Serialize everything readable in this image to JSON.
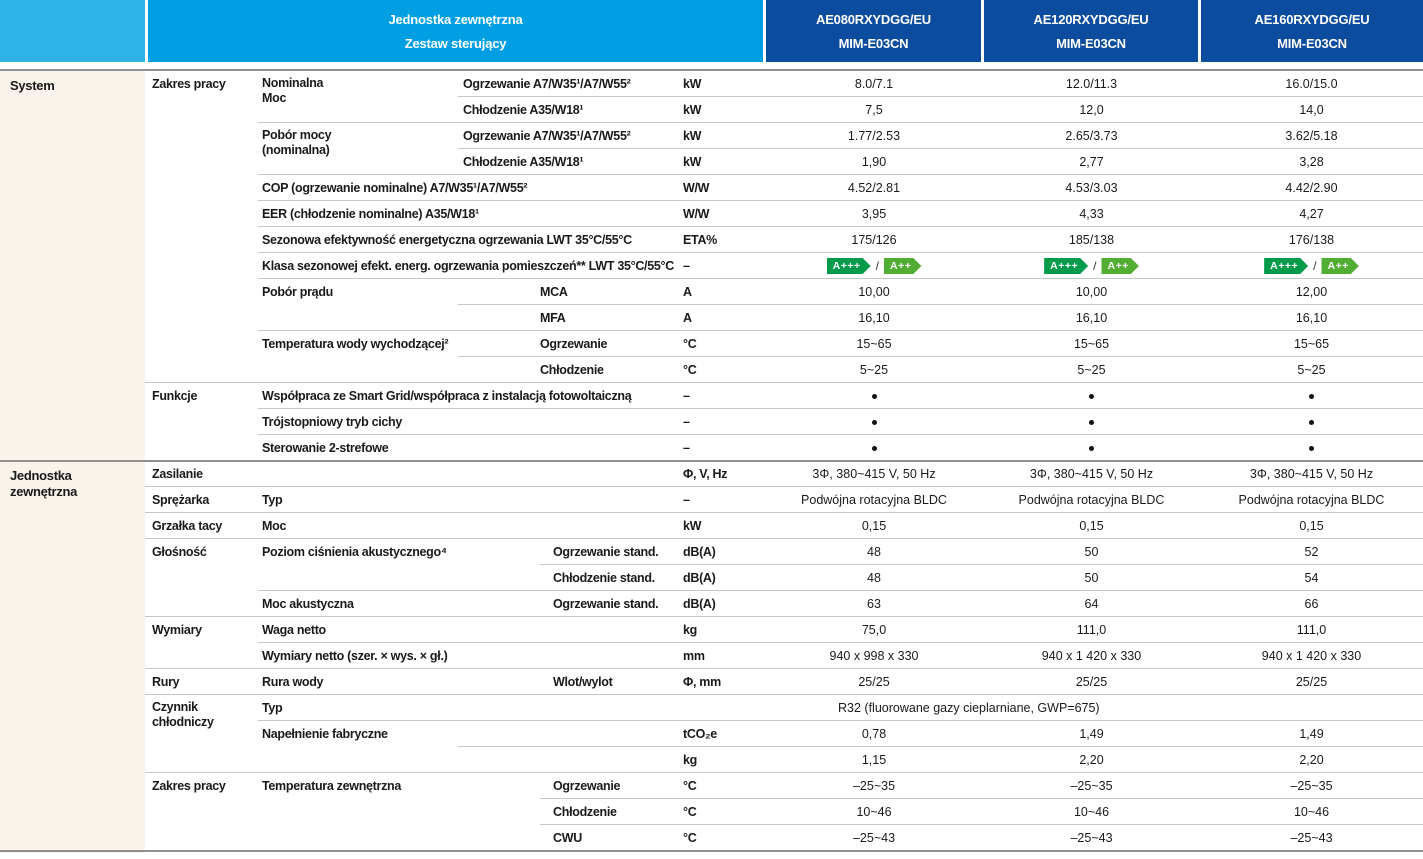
{
  "colors": {
    "cyan": "#009fe3",
    "cyan_light": "#2eb3e6",
    "navy": "#0c4c9e",
    "cream": "#f9f3ec",
    "border_light": "#c7c7c7",
    "border_dark": "#909090",
    "text": "#1a1a1a",
    "badge_green_dark": "#009b4a",
    "badge_green_light": "#52ae32"
  },
  "header": {
    "unit_title": "Jednostka zewnętrzna",
    "kit_title": "Zestaw sterujący",
    "models": [
      {
        "name": "AE080RXYDGG/EU",
        "controller": "MIM-E03CN"
      },
      {
        "name": "AE120RXYDGG/EU",
        "controller": "MIM-E03CN"
      },
      {
        "name": "AE160RXYDGG/EU",
        "controller": "MIM-E03CN"
      }
    ]
  },
  "sections": [
    {
      "label": "System",
      "row": 0
    },
    {
      "label": "Jednostka\nzewnętrzna",
      "row": 15
    }
  ],
  "rows": [
    {
      "g": "Zakres pracy",
      "p": "Nominalna\nMoc",
      "sL": "Ogrzewanie A7/W35¹/A7/W55²",
      "u": "kW",
      "v": [
        "8.0/7.1",
        "12.0/11.3",
        "16.0/15.0"
      ],
      "d": "sub"
    },
    {
      "sL": "Chłodzenie A35/W18¹",
      "u": "kW",
      "v": [
        "7,5",
        "12,0",
        "14,0"
      ],
      "d": "param"
    },
    {
      "p": "Pobór mocy\n(nominalna)",
      "sL": "Ogrzewanie A7/W35¹/A7/W55²",
      "u": "kW",
      "v": [
        "1.77/2.53",
        "2.65/3.73",
        "3.62/5.18"
      ],
      "d": "sub"
    },
    {
      "sL": "Chłodzenie A35/W18¹",
      "u": "kW",
      "v": [
        "1,90",
        "2,77",
        "3,28"
      ],
      "d": "param"
    },
    {
      "p": "COP (ogrzewanie nominalne) A7/W35¹/A7/W55²",
      "u": "W/W",
      "v": [
        "4.52/2.81",
        "4.53/3.03",
        "4.42/2.90"
      ],
      "d": "param"
    },
    {
      "p": "EER (chłodzenie nominalne) A35/W18¹",
      "u": "W/W",
      "v": [
        "3,95",
        "4,33",
        "4,27"
      ],
      "d": "param"
    },
    {
      "p": "Sezonowa efektywność energetyczna ogrzewania LWT 35°C/55°C",
      "u": "ETA%",
      "v": [
        "175/126",
        "185/138",
        "176/138"
      ],
      "d": "param"
    },
    {
      "p": "Klasa sezonowej efekt. energ. ogrzewania pomieszczeń** LWT 35°C/55°C",
      "u": "–",
      "badges": [
        "A+++",
        "A++"
      ],
      "d": "param"
    },
    {
      "p": "Pobór prądu",
      "s": "MCA",
      "u": "A",
      "v": [
        "10,00",
        "10,00",
        "12,00"
      ],
      "d": "sub"
    },
    {
      "s": "MFA",
      "u": "A",
      "v": [
        "16,10",
        "16,10",
        "16,10"
      ],
      "d": "param"
    },
    {
      "p": "Temperatura wody wychodzącej²",
      "s": "Ogrzewanie",
      "u": "°C",
      "v": [
        "15~65",
        "15~65",
        "15~65"
      ],
      "d": "sub"
    },
    {
      "s": "Chłodzenie",
      "u": "°C",
      "v": [
        "5~25",
        "5~25",
        "5~25"
      ],
      "d": "group"
    },
    {
      "g": "Funkcje",
      "p": "Współpraca ze Smart Grid/współpraca z instalacją fotowoltaiczną",
      "u": "–",
      "bullets": true,
      "d": "param"
    },
    {
      "p": "Trójstopniowy tryb cichy",
      "u": "–",
      "bullets": true,
      "d": "param"
    },
    {
      "p": "Sterowanie 2-strefowe",
      "u": "–",
      "bullets": true,
      "d": "section"
    },
    {
      "g": "Zasilanie",
      "u": "Φ, V, Hz",
      "v": [
        "3Φ, 380~415 V, 50 Hz",
        "3Φ, 380~415 V, 50 Hz",
        "3Φ, 380~415 V, 50 Hz"
      ],
      "d": "group"
    },
    {
      "g": "Sprężarka",
      "p": "Typ",
      "u": "–",
      "v": [
        "Podwójna rotacyjna BLDC",
        "Podwójna rotacyjna BLDC",
        "Podwójna rotacyjna BLDC"
      ],
      "d": "group"
    },
    {
      "g": "Grzałka tacy",
      "p": "Moc",
      "u": "kW",
      "v": [
        "0,15",
        "0,15",
        "0,15"
      ],
      "d": "group"
    },
    {
      "g": "Głośność",
      "p": "Poziom ciśnienia akustycznego⁴",
      "s2": "Ogrzewanie stand.",
      "u": "dB(A)",
      "v": [
        "48",
        "50",
        "52"
      ],
      "d": "sub2"
    },
    {
      "s2": "Chłodzenie stand.",
      "u": "dB(A)",
      "v": [
        "48",
        "50",
        "54"
      ],
      "d": "param"
    },
    {
      "p": "Moc akustyczna",
      "s2": "Ogrzewanie stand.",
      "u": "dB(A)",
      "v": [
        "63",
        "64",
        "66"
      ],
      "d": "group"
    },
    {
      "g": "Wymiary",
      "p": "Waga netto",
      "u": "kg",
      "v": [
        "75,0",
        "111,0",
        "111,0"
      ],
      "d": "param"
    },
    {
      "p": "Wymiary netto (szer. × wys. × gł.)",
      "u": "mm",
      "v": [
        "940 x 998 x 330",
        "940 x 1 420 x 330",
        "940 x 1 420 x 330"
      ],
      "d": "group"
    },
    {
      "g": "Rury",
      "p": "Rura wody",
      "s2": "Wlot/wylot",
      "u": "Φ, mm",
      "v": [
        "25/25",
        "25/25",
        "25/25"
      ],
      "d": "group"
    },
    {
      "g": "Czynnik\nchłodniczy",
      "p": "Typ",
      "span": "R32 (fluorowane gazy cieplarniane, GWP=675)",
      "d": "param"
    },
    {
      "p": "Napełnienie fabryczne",
      "u": "tCO₂e",
      "v": [
        "0,78",
        "1,49",
        "1,49"
      ],
      "d": "sub"
    },
    {
      "u": "kg",
      "v": [
        "1,15",
        "2,20",
        "2,20"
      ],
      "d": "group"
    },
    {
      "g": "Zakres pracy",
      "p": "Temperatura zewnętrzna",
      "s2": "Ogrzewanie",
      "u": "°C",
      "v": [
        "–25~35",
        "–25~35",
        "–25~35"
      ],
      "d": "sub2"
    },
    {
      "s2": "Chłodzenie",
      "u": "°C",
      "v": [
        "10~46",
        "10~46",
        "10~46"
      ],
      "d": "sub2"
    },
    {
      "s2": "CWU",
      "u": "°C",
      "v": [
        "–25~43",
        "–25~43",
        "–25~43"
      ],
      "d": "bottom"
    }
  ]
}
